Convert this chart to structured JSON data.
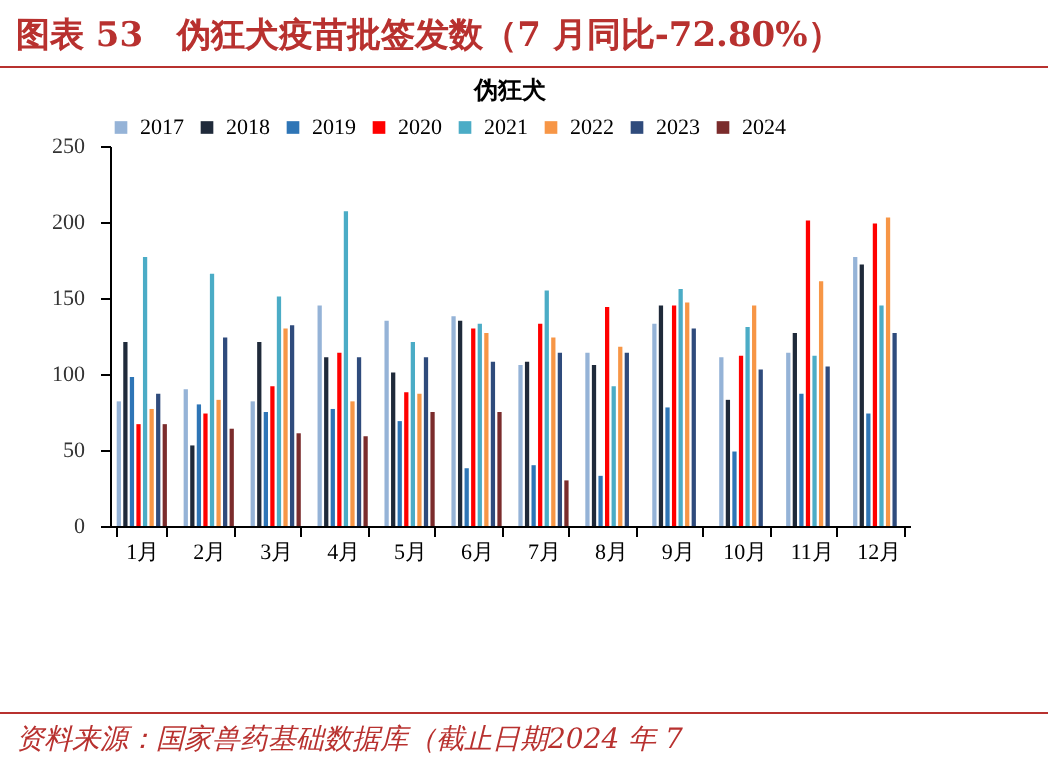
{
  "chart_data": {
    "type": "bar",
    "title": "图表 53　伪狂犬疫苗批签发数（7 月同比-72.80%）",
    "subtitle": "伪狂犬",
    "categories": [
      "1月",
      "2月",
      "3月",
      "4月",
      "5月",
      "6月",
      "7月",
      "8月",
      "9月",
      "10月",
      "11月",
      "12月"
    ],
    "series": [
      {
        "name": "2017",
        "color": "#95b3d7",
        "values": [
          82,
          90,
          82,
          145,
          135,
          138,
          106,
          114,
          133,
          111,
          114,
          177
        ]
      },
      {
        "name": "2018",
        "color": "#1f2a3a",
        "values": [
          121,
          53,
          121,
          111,
          101,
          135,
          108,
          106,
          145,
          83,
          127,
          172
        ]
      },
      {
        "name": "2019",
        "color": "#2e75b6",
        "values": [
          98,
          80,
          75,
          77,
          69,
          38,
          40,
          33,
          78,
          49,
          87,
          74
        ]
      },
      {
        "name": "2020",
        "color": "#ff0000",
        "values": [
          67,
          74,
          92,
          114,
          88,
          130,
          133,
          144,
          145,
          112,
          201,
          199
        ]
      },
      {
        "name": "2021",
        "color": "#4bacc6",
        "values": [
          177,
          166,
          151,
          207,
          121,
          133,
          155,
          92,
          156,
          131,
          112,
          145
        ]
      },
      {
        "name": "2022",
        "color": "#f79646",
        "values": [
          77,
          83,
          130,
          82,
          87,
          127,
          124,
          118,
          147,
          145,
          161,
          203
        ]
      },
      {
        "name": "2023",
        "color": "#2f4b7c",
        "values": [
          87,
          124,
          132,
          111,
          111,
          108,
          114,
          114,
          130,
          103,
          105,
          127
        ]
      },
      {
        "name": "2024",
        "color": "#7b2c2c",
        "values": [
          67,
          64,
          61,
          59,
          75,
          75,
          30,
          null,
          null,
          null,
          null,
          null
        ]
      }
    ],
    "ylim": [
      0,
      250
    ],
    "yticks": [
      0,
      50,
      100,
      150,
      200,
      250
    ],
    "grid": false,
    "legend": "top",
    "annotations": [
      "资料来源：国家兽药基础数据库（截止日期2024 年 7"
    ]
  }
}
